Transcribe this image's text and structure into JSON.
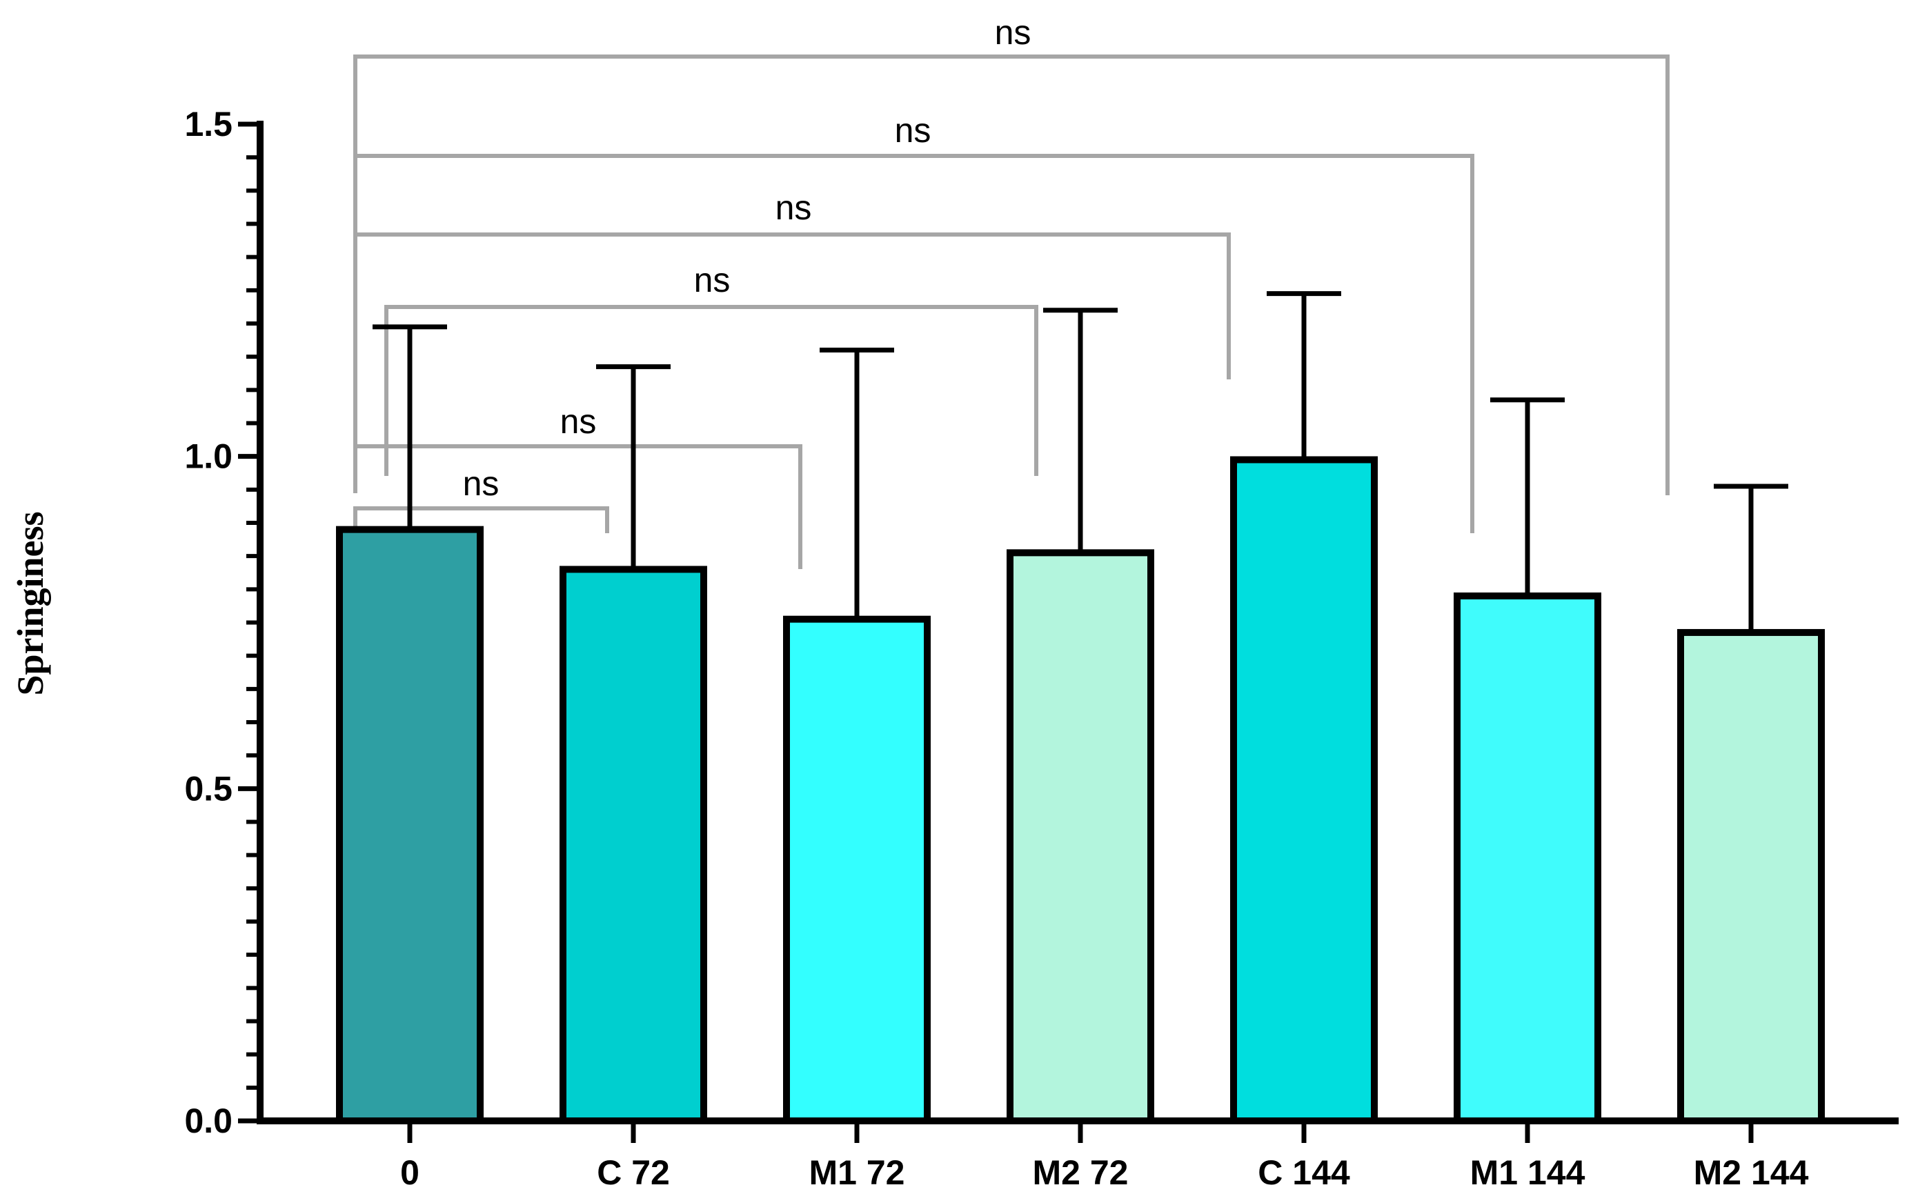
{
  "chart_data": {
    "type": "bar",
    "title": "",
    "xlabel": "",
    "ylabel": "Springiness",
    "ylim": [
      0,
      1.5
    ],
    "yticks": [
      0.0,
      0.5,
      1.0,
      1.5
    ],
    "ytick_labels": [
      "0.0",
      "0.5",
      "1.0",
      "1.5"
    ],
    "categories": [
      "0",
      "C 72",
      "M1 72",
      "M2 72",
      "C 144",
      "M1 144",
      "M2 144"
    ],
    "values": [
      0.89,
      0.83,
      0.755,
      0.855,
      0.995,
      0.79,
      0.735
    ],
    "error_upper": [
      1.195,
      1.135,
      1.16,
      1.22,
      1.245,
      1.085,
      0.955
    ],
    "colors": [
      "#2e9fa3",
      "#00cfcf",
      "#33ffff",
      "#b3f5dd",
      "#00dede",
      "#40fcfc",
      "#b3f5dd"
    ],
    "comparisons": [
      {
        "from": "0",
        "to": "C 72",
        "label": "ns"
      },
      {
        "from": "0",
        "to": "M1 72",
        "label": "ns"
      },
      {
        "from": "0",
        "to": "M2 72",
        "label": "ns"
      },
      {
        "from": "0",
        "to": "C 144",
        "label": "ns"
      },
      {
        "from": "0",
        "to": "M1 144",
        "label": "ns"
      },
      {
        "from": "0",
        "to": "M2 144",
        "label": "ns"
      }
    ]
  }
}
